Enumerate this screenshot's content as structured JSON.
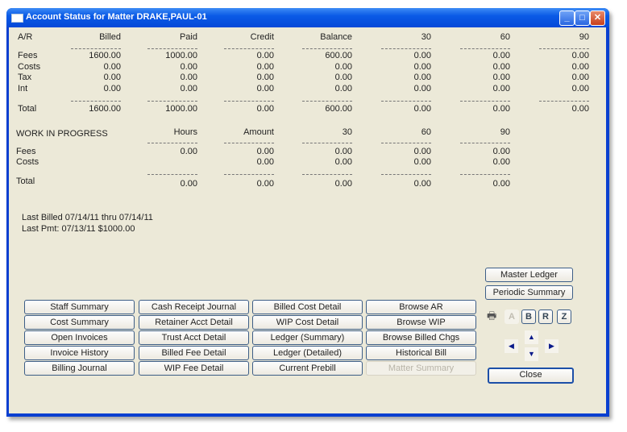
{
  "window": {
    "title": "Account Status for Matter DRAKE,PAUL-01",
    "controls": {
      "minimize": "_",
      "maximize": "□",
      "close": "✕"
    }
  },
  "ar": {
    "label": "A/R",
    "columns": [
      "Billed",
      "Paid",
      "Credit",
      "Balance",
      "30",
      "60",
      "90"
    ],
    "rows": [
      {
        "label": "Fees",
        "values": [
          "1600.00",
          "1000.00",
          "0.00",
          "600.00",
          "0.00",
          "0.00",
          "0.00"
        ]
      },
      {
        "label": "Costs",
        "values": [
          "0.00",
          "0.00",
          "0.00",
          "0.00",
          "0.00",
          "0.00",
          "0.00"
        ]
      },
      {
        "label": "Tax",
        "values": [
          "0.00",
          "0.00",
          "0.00",
          "0.00",
          "0.00",
          "0.00",
          "0.00"
        ]
      },
      {
        "label": "Int",
        "values": [
          "0.00",
          "0.00",
          "0.00",
          "0.00",
          "0.00",
          "0.00",
          "0.00"
        ]
      }
    ],
    "total": {
      "label": "Total",
      "values": [
        "1600.00",
        "1000.00",
        "0.00",
        "600.00",
        "0.00",
        "0.00",
        "0.00"
      ]
    }
  },
  "wip": {
    "label": "WORK IN PROGRESS",
    "columns": [
      "Hours",
      "Amount",
      "30",
      "60",
      "90"
    ],
    "rows": [
      {
        "label": "Fees",
        "values": [
          "0.00",
          "0.00",
          "0.00",
          "0.00",
          "0.00"
        ]
      },
      {
        "label": "Costs",
        "values": [
          "",
          "0.00",
          "0.00",
          "0.00",
          "0.00"
        ]
      }
    ],
    "total": {
      "label": "Total",
      "values": [
        "0.00",
        "0.00",
        "0.00",
        "0.00",
        "0.00"
      ]
    }
  },
  "last_billed": "Last Billed 07/14/11 thru 07/14/11",
  "last_pmt": "Last Pmt:  07/13/11  $1000.00",
  "buttons": [
    [
      "Staff Summary",
      "Cash Receipt Journal",
      "Billed Cost Detail",
      "Browse AR"
    ],
    [
      "Cost Summary",
      "Retainer Acct Detail",
      "WIP Cost Detail",
      "Browse WIP"
    ],
    [
      "Open Invoices",
      "Trust Acct Detail",
      "Ledger (Summary)",
      "Browse Billed Chgs"
    ],
    [
      "Invoice History",
      "Billed Fee Detail",
      "Ledger (Detailed)",
      "Historical Bill"
    ],
    [
      "Billing Journal",
      "WIP Fee Detail",
      "Current Prebill",
      "Matter Summary"
    ]
  ],
  "disabled_buttons": [
    "Matter Summary"
  ],
  "side": {
    "master_ledger": "Master Ledger",
    "periodic_summary": "Periodic Summary",
    "close": "Close",
    "letters": [
      "A",
      "B",
      "R",
      "Z"
    ],
    "printer_icon": "printer-icon"
  }
}
